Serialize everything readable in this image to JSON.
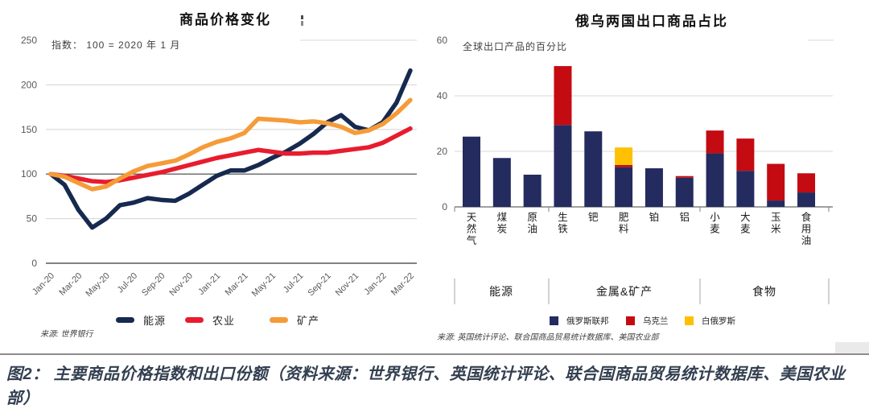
{
  "caption": {
    "text": "图2： 主要商品价格指数和出口份额（资料来源：世界银行、英国统计评论、联合国商品贸易统计数据库、美国农业部）",
    "color": "#333f50"
  },
  "chart_data": [
    {
      "type": "line",
      "title": "商品价格变化",
      "subtitle": "指数： 100 = 2020 年 1 月",
      "source": "来源: 世界银行",
      "ylabel": "",
      "ylim": [
        0,
        250
      ],
      "yticks": [
        0,
        50,
        100,
        150,
        200,
        250
      ],
      "baseline": 100,
      "grid": "horizontal",
      "legend_position": "bottom",
      "x": [
        "Jan-20",
        "Feb-20",
        "Mar-20",
        "Apr-20",
        "May-20",
        "Jun-20",
        "Jul-20",
        "Aug-20",
        "Sep-20",
        "Oct-20",
        "Nov-20",
        "Dec-20",
        "Jan-21",
        "Feb-21",
        "Mar-21",
        "Apr-21",
        "May-21",
        "Jun-21",
        "Jul-21",
        "Aug-21",
        "Sep-21",
        "Oct-21",
        "Nov-21",
        "Dec-21",
        "Jan-22",
        "Feb-22",
        "Mar-22"
      ],
      "x_tick_labels": [
        "Jan-20",
        "Mar-20",
        "May-20",
        "Jul-20",
        "Sep-20",
        "Nov-20",
        "Jan-21",
        "Mar-21",
        "May-21",
        "Jul-21",
        "Sep-21",
        "Nov-21",
        "Jan-22",
        "Mar-22"
      ],
      "series": [
        {
          "name": "能源",
          "color": "#16294f",
          "values": [
            100,
            88,
            60,
            40,
            50,
            65,
            68,
            73,
            71,
            70,
            78,
            88,
            98,
            104,
            104,
            110,
            118,
            125,
            134,
            145,
            158,
            166,
            153,
            149,
            158,
            180,
            216
          ]
        },
        {
          "name": "农业",
          "color": "#e81c2e",
          "values": [
            100,
            98,
            95,
            92,
            91,
            93,
            96,
            99,
            102,
            106,
            110,
            114,
            118,
            121,
            124,
            127,
            125,
            123,
            123,
            124,
            124,
            126,
            128,
            130,
            135,
            143,
            151
          ]
        },
        {
          "name": "矿产",
          "color": "#f59b38",
          "values": [
            100,
            97,
            90,
            83,
            86,
            95,
            103,
            109,
            112,
            115,
            122,
            130,
            136,
            140,
            146,
            162,
            161,
            160,
            158,
            159,
            157,
            153,
            146,
            149,
            156,
            168,
            183
          ]
        }
      ]
    },
    {
      "type": "bar",
      "stacked": true,
      "title": "俄乌两国出口商品占比",
      "subtitle": "全球出口产品的百分比",
      "source": "来源: 英国统计评论、联合国商品贸易统计数据库、美国农业部",
      "ylim": [
        0,
        60
      ],
      "yticks": [
        0,
        20,
        40,
        60
      ],
      "grid": "horizontal",
      "legend_position": "bottom",
      "categories": [
        "天然气",
        "煤炭",
        "原油",
        "生铁",
        "钯",
        "肥料",
        "铂",
        "铝",
        "小麦",
        "大麦",
        "玉米",
        "食用油"
      ],
      "groups": [
        {
          "label": "能源",
          "from": 0,
          "to": 2
        },
        {
          "label": "金属&矿产",
          "from": 3,
          "to": 7
        },
        {
          "label": "食物",
          "from": 8,
          "to": 11
        }
      ],
      "series": [
        {
          "name": "俄罗斯联邦",
          "color": "#242b5f",
          "values": [
            25.3,
            17.6,
            11.6,
            29.5,
            27.2,
            14.3,
            13.9,
            10.5,
            19.3,
            13.0,
            2.3,
            5.2
          ]
        },
        {
          "name": "乌克兰",
          "color": "#c40b12",
          "values": [
            0,
            0,
            0,
            21.2,
            0,
            0.8,
            0,
            0.6,
            8.2,
            11.6,
            13.2,
            6.9
          ]
        },
        {
          "name": "白俄罗斯",
          "color": "#ffc000",
          "values": [
            0,
            0,
            0,
            0,
            0,
            6.3,
            0,
            0,
            0,
            0,
            0,
            0
          ]
        }
      ]
    }
  ]
}
